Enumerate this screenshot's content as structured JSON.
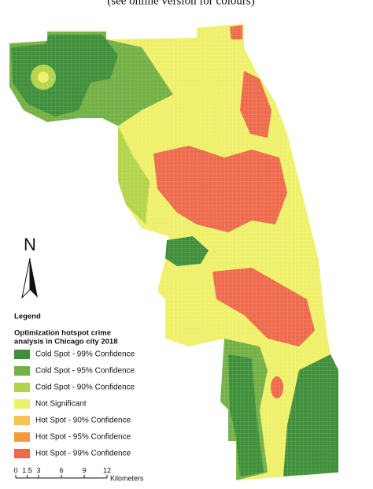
{
  "caption": "(see online version for colours)",
  "north_label": "N",
  "legend": {
    "heading": "Legend",
    "title_lines": [
      "Optimization hotspot crime",
      "analysis in Chicago city 2018"
    ],
    "items": [
      {
        "label": "Cold Spot - 99% Confidence",
        "color": "#3f8f3a"
      },
      {
        "label": "Cold Spot - 95% Confidence",
        "color": "#73b045"
      },
      {
        "label": "Cold Spot - 90% Confidence",
        "color": "#b3d44a"
      },
      {
        "label": "Not Significant",
        "color": "#eef06a"
      },
      {
        "label": "Hot Spot - 90% Confidence",
        "color": "#f6c453"
      },
      {
        "label": "Hot Spot - 95% Confidence",
        "color": "#f39a3c"
      },
      {
        "label": "Hot Spot - 99% Confidence",
        "color": "#ee6a4c"
      }
    ]
  },
  "scale_bar": {
    "ticks": [
      0,
      1.5,
      3,
      6,
      9,
      12
    ],
    "unit": "Kilometers"
  }
}
